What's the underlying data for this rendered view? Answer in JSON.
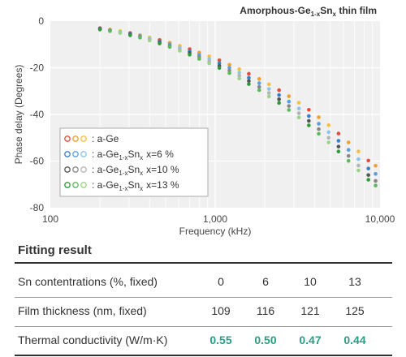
{
  "chart_data": {
    "type": "scatter",
    "title": "Amorphous-Ge",
    "title_sub": "1-x",
    "title_mid": "Sn",
    "title_sub2": "x",
    "title_tail": " thin film",
    "xlabel": "Frequency (kHz)",
    "ylabel": "Phase delay (Degrees)",
    "x_scale": "log",
    "xlim": [
      100,
      10000
    ],
    "ylim": [
      -80,
      0
    ],
    "x_ticks": [
      100,
      1000,
      10000
    ],
    "x_tick_labels": [
      "100",
      "1,000",
      "10,000"
    ],
    "y_ticks": [
      0,
      -20,
      -40,
      -60,
      -80
    ],
    "y_tick_labels": [
      "0",
      "-20",
      "-40",
      "-60",
      "-80"
    ],
    "grid": true,
    "legend_position": "bottom-left",
    "x": [
      200,
      230,
      265,
      305,
      350,
      400,
      460,
      530,
      610,
      700,
      800,
      920,
      1060,
      1220,
      1400,
      1600,
      1850,
      2120,
      2440,
      2800,
      3220,
      3700,
      4250,
      4880,
      5600,
      6440,
      7400,
      8500,
      9400
    ],
    "series": [
      {
        "legend_prefix": ": a-Ge",
        "legend_sub": "",
        "legend_sn": "",
        "legend_subx": "",
        "legend_x": "",
        "colors": [
          "#e64b3c",
          "#f0a030",
          "#f5c040"
        ],
        "values": [
          -3.0,
          -3.6,
          -4.3,
          -5.1,
          -6.0,
          -7.0,
          -8.1,
          -9.3,
          -10.6,
          -12.0,
          -13.5,
          -15.1,
          -16.8,
          -18.7,
          -20.6,
          -22.6,
          -24.8,
          -27.1,
          -29.6,
          -32.2,
          -35.0,
          -38.0,
          -41.2,
          -44.6,
          -48.2,
          -52.0,
          -55.9,
          -59.8,
          -62.0
        ]
      },
      {
        "legend_prefix": ": a-Ge",
        "legend_sub": "1-x",
        "legend_sn": "Sn",
        "legend_subx": "x",
        "legend_x": "x=6 %",
        "colors": [
          "#3a7ec6",
          "#5aa0dc",
          "#8cc4ec"
        ],
        "values": [
          -3.2,
          -3.9,
          -4.6,
          -5.5,
          -6.4,
          -7.5,
          -8.7,
          -10.0,
          -11.4,
          -12.9,
          -14.5,
          -16.2,
          -18.1,
          -20.0,
          -22.1,
          -24.3,
          -26.6,
          -29.1,
          -31.7,
          -34.5,
          -37.5,
          -40.7,
          -44.0,
          -47.6,
          -51.3,
          -55.2,
          -59.2,
          -63.2,
          -65.5
        ]
      },
      {
        "legend_prefix": ": a-Ge",
        "legend_sub": "1-x",
        "legend_sn": "Sn",
        "legend_subx": "x",
        "legend_x": "x=10 %",
        "colors": [
          "#555555",
          "#888888",
          "#b5b5b5"
        ],
        "values": [
          -3.4,
          -4.1,
          -4.9,
          -5.8,
          -6.8,
          -7.9,
          -9.2,
          -10.6,
          -12.1,
          -13.7,
          -15.4,
          -17.2,
          -19.2,
          -21.2,
          -23.4,
          -25.7,
          -28.2,
          -30.8,
          -33.5,
          -36.4,
          -39.5,
          -42.8,
          -46.3,
          -50.0,
          -53.8,
          -57.8,
          -61.9,
          -66.0,
          -68.5
        ]
      },
      {
        "legend_prefix": ": a-Ge",
        "legend_sub": "1-x",
        "legend_sn": "Sn",
        "legend_subx": "x",
        "legend_x": "x=13 %",
        "colors": [
          "#2f9a3a",
          "#5cba5a",
          "#9ad48a"
        ],
        "values": [
          -3.6,
          -4.3,
          -5.1,
          -6.1,
          -7.1,
          -8.3,
          -9.6,
          -11.1,
          -12.7,
          -14.4,
          -16.2,
          -18.1,
          -20.1,
          -22.3,
          -24.6,
          -27.0,
          -29.6,
          -32.3,
          -35.1,
          -38.1,
          -41.3,
          -44.7,
          -48.3,
          -52.0,
          -55.9,
          -59.9,
          -64.0,
          -68.0,
          -70.5
        ]
      }
    ]
  },
  "table": {
    "title": "Fitting result",
    "rows": [
      {
        "label": "Sn contentrations (%, fixed)",
        "values": [
          "0",
          "6",
          "10",
          "13"
        ]
      },
      {
        "label": "Film thickness (nm, fixed)",
        "values": [
          "109",
          "116",
          "121",
          "125"
        ]
      },
      {
        "label": "Thermal conductivity (W/m·K)",
        "values": [
          "0.55",
          "0.50",
          "0.47",
          "0.44"
        ]
      }
    ],
    "highlight_color": "#2a9d86"
  }
}
